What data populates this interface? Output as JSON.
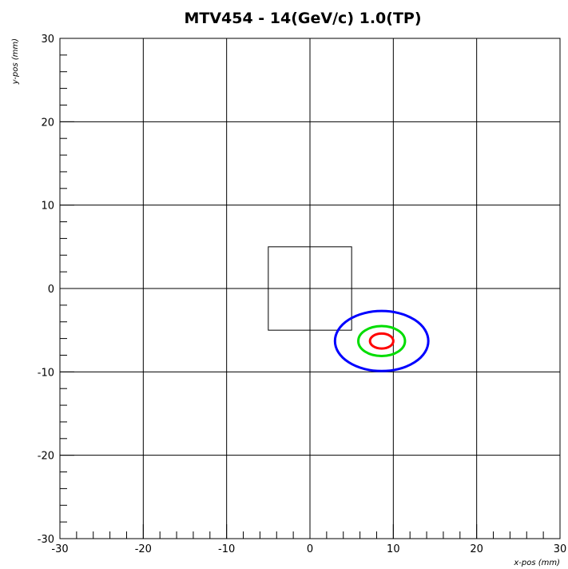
{
  "chart_data": {
    "type": "scatter",
    "title": "MTV454  -  14(GeV/c)  1.0(TP)",
    "xlabel": "x-pos (mm)",
    "ylabel": "y-pos (mm)",
    "xlim": [
      -30,
      30
    ],
    "ylim": [
      -30,
      30
    ],
    "x_ticks": [
      -30,
      -20,
      -10,
      0,
      10,
      20,
      30
    ],
    "y_ticks": [
      -30,
      -20,
      -10,
      0,
      10,
      20,
      30
    ],
    "x_tick_labels": [
      "-30",
      "-20",
      "-10",
      "0",
      "10",
      "20",
      "30"
    ],
    "y_tick_labels": [
      "-30",
      "-20",
      "-10",
      "0",
      "10",
      "20",
      "30"
    ],
    "minor_tick_step": 2,
    "grid": true,
    "rectangle": {
      "x": [
        -5,
        5
      ],
      "y": [
        -5,
        5
      ],
      "color": "#000000"
    },
    "ellipses": [
      {
        "cx": 8.6,
        "cy": -6.3,
        "rx": 5.6,
        "ry": 3.6,
        "color": "#0000ff"
      },
      {
        "cx": 8.6,
        "cy": -6.3,
        "rx": 2.8,
        "ry": 1.8,
        "color": "#00dd00"
      },
      {
        "cx": 8.6,
        "cy": -6.3,
        "rx": 1.4,
        "ry": 0.9,
        "color": "#ff0000"
      }
    ]
  }
}
